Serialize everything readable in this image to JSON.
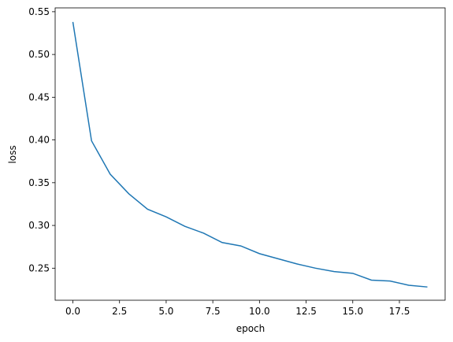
{
  "chart_data": {
    "type": "line",
    "x_label": "epoch",
    "y_label": "loss",
    "x": [
      0,
      1,
      2,
      3,
      4,
      5,
      6,
      7,
      8,
      9,
      10,
      11,
      12,
      13,
      14,
      15,
      16,
      17,
      18,
      19
    ],
    "series": [
      {
        "color": "#1f77b4",
        "values": [
          0.538,
          0.399,
          0.36,
          0.337,
          0.319,
          0.31,
          0.299,
          0.291,
          0.28,
          0.276,
          0.267,
          0.261,
          0.255,
          0.25,
          0.246,
          0.244,
          0.236,
          0.235,
          0.23,
          0.228
        ]
      }
    ],
    "xlim": [
      -0.95,
      19.95
    ],
    "xticks": [
      {
        "value": 0,
        "label": "0.0"
      },
      2.5,
      {
        "value": 5,
        "label": "5.0"
      },
      7.5,
      {
        "value": 10,
        "label": "10.0"
      },
      12.5,
      {
        "value": 15,
        "label": "15.0"
      },
      17.5
    ],
    "ylim": [
      0.2125,
      0.5545
    ],
    "yticks": [
      0.25,
      {
        "value": 0.3,
        "label": "0.30"
      },
      0.35,
      {
        "value": 0.4,
        "label": "0.40"
      },
      0.45,
      {
        "value": 0.5,
        "label": "0.50"
      },
      0.55
    ],
    "grid": false
  }
}
